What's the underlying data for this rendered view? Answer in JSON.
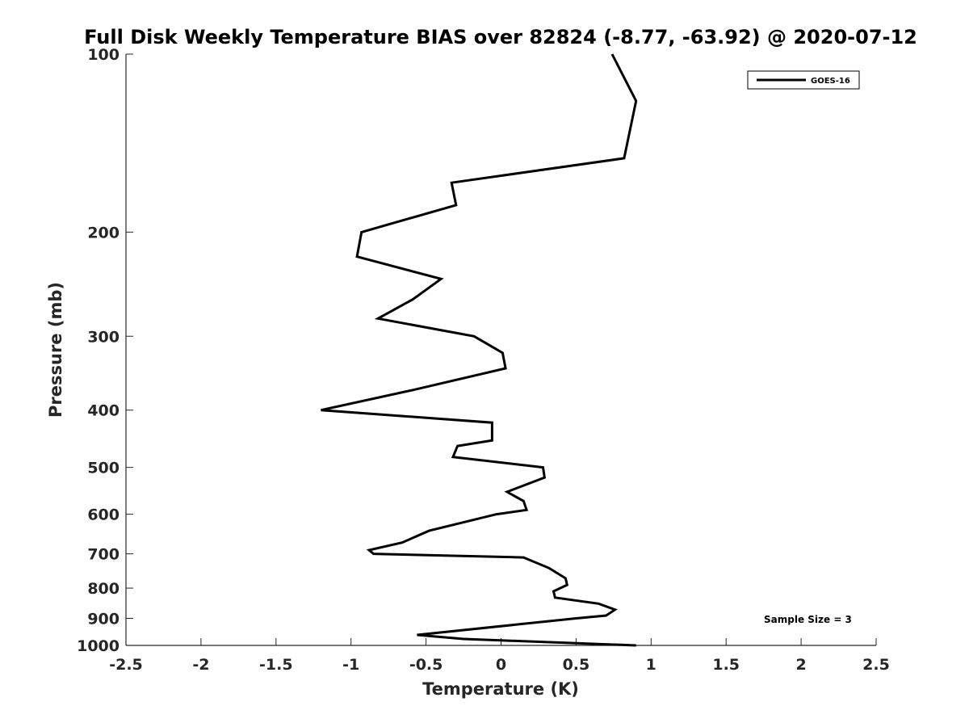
{
  "chart_data": {
    "type": "line",
    "title": "Full Disk Weekly Temperature BIAS over 82824 (-8.77, -63.92) @ 2020-07-12",
    "xlabel": "Temperature (K)",
    "ylabel": "Pressure (mb)",
    "xlim": [
      -2.5,
      2.5
    ],
    "ylim": [
      100,
      1000
    ],
    "y_scale": "log",
    "y_reversed": true,
    "grid": false,
    "legend_position": "top-right",
    "x_ticks": [
      -2.5,
      -2,
      -1.5,
      -1,
      -0.5,
      0,
      0.5,
      1,
      1.5,
      2,
      2.5
    ],
    "x_tick_labels": [
      "-2.5",
      "-2",
      "-1.5",
      "-1",
      "-0.5",
      "0",
      "0.5",
      "1",
      "1.5",
      "2",
      "2.5"
    ],
    "y_ticks": [
      100,
      200,
      300,
      400,
      500,
      600,
      700,
      800,
      900,
      1000
    ],
    "y_tick_labels": [
      "100",
      "200",
      "300",
      "400",
      "500",
      "600",
      "700",
      "800",
      "900",
      "1000"
    ],
    "series": [
      {
        "name": "GOES-16",
        "color": "#000000",
        "points": [
          {
            "x": 0.74,
            "y": 100
          },
          {
            "x": 0.9,
            "y": 120
          },
          {
            "x": 0.82,
            "y": 150
          },
          {
            "x": -0.33,
            "y": 165
          },
          {
            "x": -0.3,
            "y": 180
          },
          {
            "x": -0.93,
            "y": 200
          },
          {
            "x": -0.96,
            "y": 220
          },
          {
            "x": -0.4,
            "y": 240
          },
          {
            "x": -0.59,
            "y": 260
          },
          {
            "x": -0.82,
            "y": 280
          },
          {
            "x": -0.18,
            "y": 300
          },
          {
            "x": 0.01,
            "y": 320
          },
          {
            "x": 0.03,
            "y": 340
          },
          {
            "x": -0.59,
            "y": 370
          },
          {
            "x": -1.2,
            "y": 400
          },
          {
            "x": -0.06,
            "y": 420
          },
          {
            "x": -0.06,
            "y": 450
          },
          {
            "x": -0.29,
            "y": 460
          },
          {
            "x": -0.32,
            "y": 480
          },
          {
            "x": 0.28,
            "y": 500
          },
          {
            "x": 0.29,
            "y": 520
          },
          {
            "x": 0.04,
            "y": 550
          },
          {
            "x": 0.15,
            "y": 570
          },
          {
            "x": 0.17,
            "y": 590
          },
          {
            "x": -0.03,
            "y": 600
          },
          {
            "x": -0.48,
            "y": 640
          },
          {
            "x": -0.66,
            "y": 670
          },
          {
            "x": -0.88,
            "y": 690
          },
          {
            "x": -0.85,
            "y": 700
          },
          {
            "x": 0.15,
            "y": 710
          },
          {
            "x": 0.32,
            "y": 740
          },
          {
            "x": 0.43,
            "y": 770
          },
          {
            "x": 0.44,
            "y": 790
          },
          {
            "x": 0.35,
            "y": 810
          },
          {
            "x": 0.36,
            "y": 830
          },
          {
            "x": 0.65,
            "y": 850
          },
          {
            "x": 0.76,
            "y": 870
          },
          {
            "x": 0.7,
            "y": 890
          },
          {
            "x": 0.5,
            "y": 900
          },
          {
            "x": -0.56,
            "y": 960
          },
          {
            "x": -0.25,
            "y": 975
          },
          {
            "x": 0.9,
            "y": 1000
          }
        ]
      }
    ],
    "annotations": [
      "Sample Size = 3"
    ]
  }
}
